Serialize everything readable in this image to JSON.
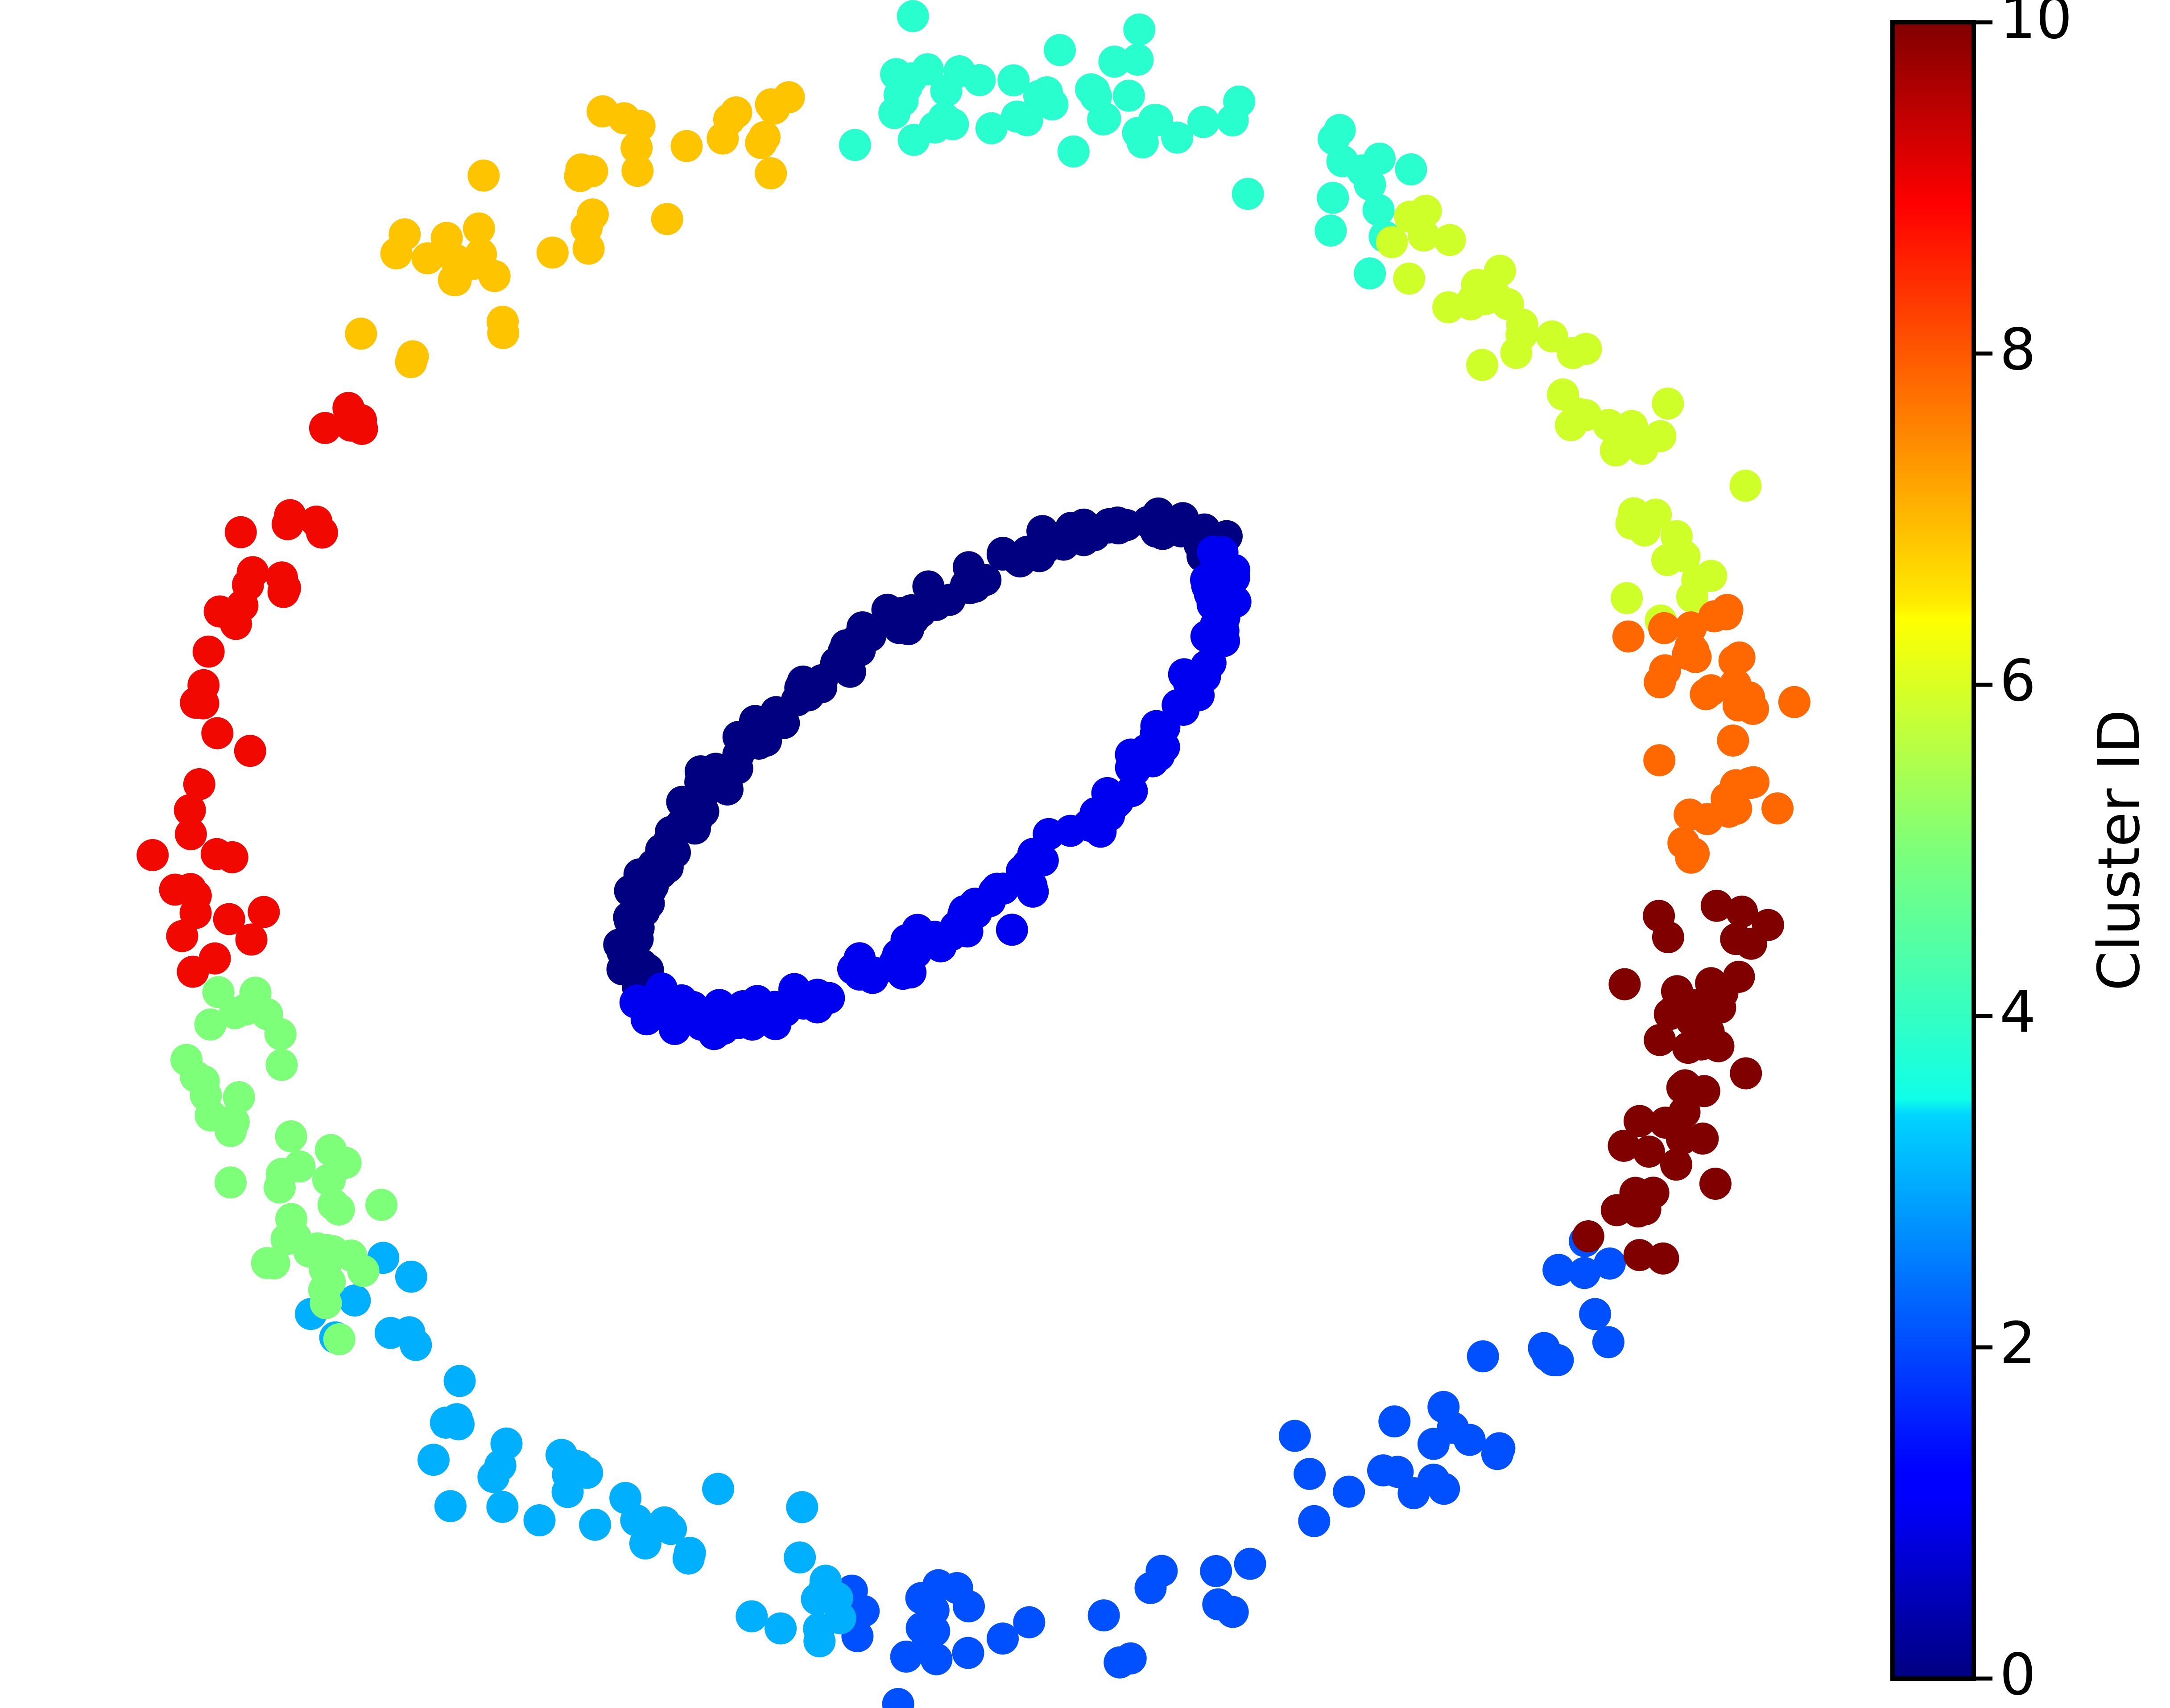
{
  "chart_data": {
    "type": "scatter",
    "title": "",
    "xlabel": "",
    "ylabel": "",
    "axes_visible": false,
    "grid": false,
    "xlim": [
      -1.05,
      1.05
    ],
    "ylim": [
      -1.05,
      1.05
    ],
    "colormap": "jet",
    "colorbar": {
      "label": "Cluster ID",
      "range": [
        0,
        10
      ],
      "ticks": [
        0,
        2,
        4,
        6,
        8,
        10
      ],
      "tick_labels": [
        "0",
        "2",
        "4",
        "6",
        "8",
        "10"
      ],
      "placement": "right"
    },
    "clusters": [
      {
        "id": 0,
        "color": "#000080",
        "arc_deg": [
          0,
          180
        ],
        "ring": "inner",
        "count": 150
      },
      {
        "id": 1,
        "color": "#0000f1",
        "arc_deg": [
          180,
          360
        ],
        "ring": "inner",
        "count": 150
      },
      {
        "id": 2,
        "color": "#0050ff",
        "arc_deg": [
          -102,
          -32
        ],
        "ring": "outer",
        "count": 55
      },
      {
        "id": 3,
        "color": "#00b0ff",
        "arc_deg": [
          -146,
          -98
        ],
        "ring": "outer",
        "count": 45
      },
      {
        "id": 4,
        "color": "#29ffce",
        "arc_deg": [
          55,
          100
        ],
        "ring": "outer",
        "count": 55
      },
      {
        "id": 5,
        "color": "#7dff7a",
        "arc_deg": [
          -170,
          -142
        ],
        "ring": "outer",
        "count": 45
      },
      {
        "id": 6,
        "color": "#ceff29",
        "arc_deg": [
          18,
          57
        ],
        "ring": "outer",
        "count": 45
      },
      {
        "id": 7,
        "color": "#ffc400",
        "arc_deg": [
          103,
          140
        ],
        "ring": "outer",
        "count": 40
      },
      {
        "id": 8,
        "color": "#ff6800",
        "arc_deg": [
          -2,
          18
        ],
        "ring": "outer",
        "count": 35
      },
      {
        "id": 9,
        "color": "#f10800",
        "arc_deg": [
          140,
          190
        ],
        "ring": "outer",
        "count": 40
      },
      {
        "id": 10,
        "color": "#800000",
        "arc_deg": [
          -32,
          -3
        ],
        "ring": "outer",
        "count": 45
      }
    ]
  }
}
